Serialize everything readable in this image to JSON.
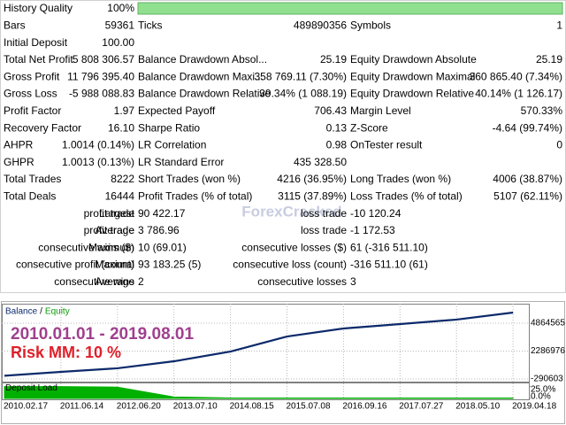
{
  "report": {
    "rows": [
      [
        "History Quality",
        "100%"
      ],
      [
        "Bars",
        "59361",
        "Ticks",
        "489890356",
        "Symbols",
        "1"
      ],
      [
        "Initial Deposit",
        "100.00"
      ],
      [
        "Total Net Profit",
        "5 808 306.57",
        "Balance Drawdown Absol...",
        "25.19",
        "Equity Drawdown Absolute",
        "25.19"
      ],
      [
        "Gross Profit",
        "11 796 395.40",
        "Balance Drawdown Maxi...",
        "358 769.11 (7.30%)",
        "Equity Drawdown Maximal",
        "360 865.40 (7.34%)"
      ],
      [
        "Gross Loss",
        "-5 988 088.83",
        "Balance Drawdown Relative",
        "39.34% (1 088.19)",
        "Equity Drawdown Relative",
        "40.14% (1 126.17)"
      ],
      [
        "Profit Factor",
        "1.97",
        "Expected Payoff",
        "706.43",
        "Margin Level",
        "570.33%"
      ],
      [
        "Recovery Factor",
        "16.10",
        "Sharpe Ratio",
        "0.13",
        "Z-Score",
        "-4.64 (99.74%)"
      ],
      [
        "AHPR",
        "1.0014 (0.14%)",
        "LR Correlation",
        "0.98",
        "OnTester result",
        "0"
      ],
      [
        "GHPR",
        "1.0013 (0.13%)",
        "LR Standard Error",
        "435 328.50"
      ],
      [
        "Total Trades",
        "8222",
        "Short Trades (won %)",
        "4216 (36.95%)",
        "Long Trades (won %)",
        "4006 (38.87%)"
      ],
      [
        "Total Deals",
        "16444",
        "Profit Trades (% of total)",
        "3115 (37.89%)",
        "Loss Trades (% of total)",
        "5107 (62.11%)"
      ],
      [
        "Largest",
        "profit trade",
        "90 422.17",
        "loss trade",
        "-10 120.24"
      ],
      [
        "Average",
        "profit trade",
        "3 786.96",
        "loss trade",
        "-1 172.53"
      ],
      [
        "Maximum",
        "consecutive wins ($)",
        "10 (69.01)",
        "consecutive losses ($)",
        "61 (-316 511.10)"
      ],
      [
        "Maximal",
        "consecutive profit (count)",
        "93 183.25 (5)",
        "consecutive loss (count)",
        "-316 511.10 (61)"
      ],
      [
        "Average",
        "consecutive wins",
        "2",
        "consecutive losses",
        "3"
      ]
    ],
    "watermark": "ForexCracked"
  },
  "chart_data": {
    "type": "line",
    "annotations": [
      "2010.01.01 - 2019.08.01",
      "Risk MM: 10 %"
    ],
    "legend_separator": "/",
    "categories": [
      "2010.02.17",
      "2011.06.14",
      "2012.06.20",
      "2013.07.10",
      "2014.08.15",
      "2015.07.08",
      "2016.09.16",
      "2017.07.27",
      "2018.05.10",
      "2019.04.18"
    ],
    "series": [
      {
        "name": "Balance",
        "color": "#0c2a6b",
        "values": [
          100,
          360000,
          690000,
          1340000,
          2240000,
          3630000,
          4370000,
          4780000,
          5190000,
          5840000
        ]
      },
      {
        "name": "Equity",
        "color": "#0a9a0a",
        "values": [
          100,
          350000,
          680000,
          1320000,
          2220000,
          3610000,
          4350000,
          4760000,
          5170000,
          5820000
        ]
      }
    ],
    "ylim": [
      -540000,
      6660000
    ],
    "yticks": [
      4864565,
      2286976,
      -290603
    ],
    "grid": true,
    "deposit_load": {
      "title": "Deposit Load",
      "color": "#00b000",
      "values": [
        25,
        25,
        24,
        3,
        1,
        1,
        1,
        1,
        1,
        1
      ],
      "ylim": [
        0,
        30
      ],
      "yticks": [
        {
          "value": 25,
          "label": "25.0%"
        },
        {
          "value": 0,
          "label": "0.0%"
        }
      ]
    }
  }
}
